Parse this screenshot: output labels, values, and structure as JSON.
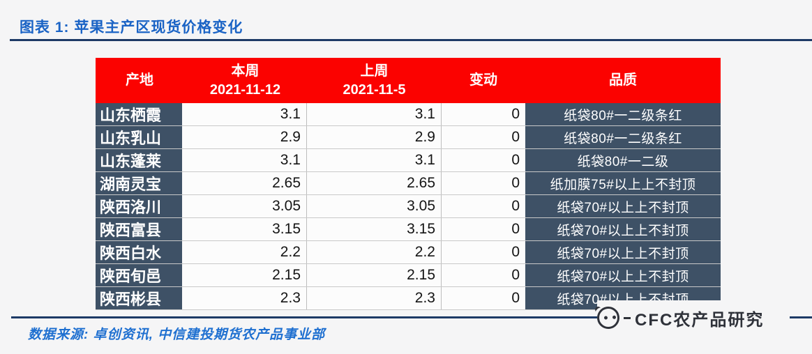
{
  "page": {
    "title": "图表 1: 苹果主产区现货价格变化",
    "source_note": "数据来源: 卓创资讯, 中信建投期货农产品事业部",
    "watermark": "CFC农产品研究"
  },
  "colors": {
    "header_red": "#fb0200",
    "cell_slate": "#3e5166",
    "title_blue": "#1a63c5",
    "rule_navy": "#1d3a66",
    "source_blue": "#1e6fd0",
    "watermark_gray": "#2f323a",
    "page_bg": "#f5f5f6"
  },
  "table": {
    "columns": [
      {
        "key": "origin",
        "label": "产地",
        "sub": ""
      },
      {
        "key": "this_week",
        "label": "本周",
        "sub": "2021-11-12"
      },
      {
        "key": "last_week",
        "label": "上周",
        "sub": "2021-11-5"
      },
      {
        "key": "change",
        "label": "变动",
        "sub": ""
      },
      {
        "key": "quality",
        "label": "品质",
        "sub": ""
      }
    ],
    "rows": [
      {
        "origin": "山东栖霞",
        "this_week": "3.1",
        "last_week": "3.1",
        "change": "0",
        "quality": "纸袋80#一二级条红"
      },
      {
        "origin": "山东乳山",
        "this_week": "2.9",
        "last_week": "2.9",
        "change": "0",
        "quality": "纸袋80#一二级条红"
      },
      {
        "origin": "山东蓬莱",
        "this_week": "3.1",
        "last_week": "3.1",
        "change": "0",
        "quality": "纸袋80#一二级"
      },
      {
        "origin": "湖南灵宝",
        "this_week": "2.65",
        "last_week": "2.65",
        "change": "0",
        "quality": "纸加膜75#以上上不封顶"
      },
      {
        "origin": "陕西洛川",
        "this_week": "3.05",
        "last_week": "3.05",
        "change": "0",
        "quality": "纸袋70#以上上不封顶"
      },
      {
        "origin": "陕西富县",
        "this_week": "3.15",
        "last_week": "3.15",
        "change": "0",
        "quality": "纸袋70#以上上不封顶"
      },
      {
        "origin": "陕西白水",
        "this_week": "2.2",
        "last_week": "2.2",
        "change": "0",
        "quality": "纸袋70#以上上不封顶"
      },
      {
        "origin": "陕西旬邑",
        "this_week": "2.15",
        "last_week": "2.15",
        "change": "0",
        "quality": "纸袋70#以上上不封顶"
      },
      {
        "origin": "陕西彬县",
        "this_week": "2.3",
        "last_week": "2.3",
        "change": "0",
        "quality": "纸袋70#以上上不封顶"
      }
    ]
  }
}
